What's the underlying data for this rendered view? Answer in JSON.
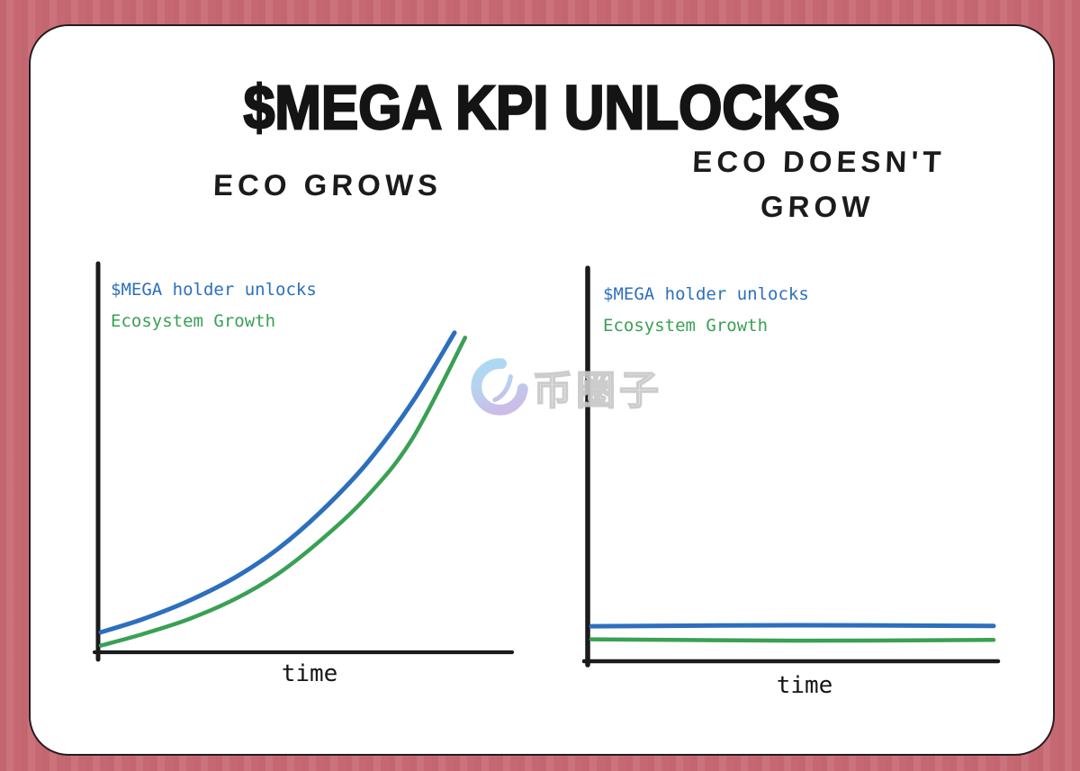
{
  "page": {
    "title": "$MEGA KPI UNLOCKS"
  },
  "panels": {
    "left": {
      "subtitle": "ECO GROWS"
    },
    "right": {
      "subtitle_line1": "ECO DOESN'T",
      "subtitle_line2": "GROW"
    }
  },
  "watermark": {
    "text": "币圈子"
  },
  "colors": {
    "background": "#c96b75",
    "card": "#ffffff",
    "card_border": "#241d1f",
    "axis": "#1b1b1b",
    "title_text": "#141414",
    "unlocks_blue": "#2d6fbe",
    "growth_green": "#3aa054"
  },
  "chart_data": [
    {
      "type": "line",
      "title": "ECO GROWS",
      "xlabel": "time",
      "ylabel": "",
      "x_range": [
        0,
        1
      ],
      "y_range": [
        0,
        1
      ],
      "grid": false,
      "legend_position": "top-left",
      "axis_style": "hand-drawn, no tick labels, qualitative",
      "series": [
        {
          "name": "$MEGA holder unlocks",
          "color": "#2d6fbe",
          "shape": "exponential increase",
          "x": [
            0,
            0.12,
            0.25,
            0.38,
            0.5,
            0.62,
            0.75,
            0.88,
            1.0
          ],
          "y": [
            0.06,
            0.1,
            0.155,
            0.225,
            0.31,
            0.42,
            0.565,
            0.75,
            0.96
          ]
        },
        {
          "name": "Ecosystem Growth",
          "color": "#3aa054",
          "shape": "exponential increase (slightly below unlocks)",
          "x": [
            0,
            0.12,
            0.25,
            0.38,
            0.5,
            0.62,
            0.75,
            0.88,
            1.03
          ],
          "y": [
            0.02,
            0.055,
            0.1,
            0.16,
            0.235,
            0.335,
            0.465,
            0.64,
            0.945
          ]
        }
      ]
    },
    {
      "type": "line",
      "title": "ECO DOESN'T GROW",
      "xlabel": "time",
      "ylabel": "",
      "x_range": [
        0,
        1
      ],
      "y_range": [
        0,
        1
      ],
      "grid": false,
      "legend_position": "top-left",
      "axis_style": "hand-drawn, no tick labels, qualitative",
      "series": [
        {
          "name": "$MEGA holder unlocks",
          "color": "#2d6fbe",
          "shape": "flat near zero",
          "x": [
            0,
            0.5,
            1.0
          ],
          "y": [
            0.105,
            0.108,
            0.106
          ]
        },
        {
          "name": "Ecosystem Growth",
          "color": "#3aa054",
          "shape": "flat near zero (slightly below unlocks)",
          "x": [
            0,
            0.5,
            1.0
          ],
          "y": [
            0.066,
            0.062,
            0.064
          ]
        }
      ]
    }
  ]
}
